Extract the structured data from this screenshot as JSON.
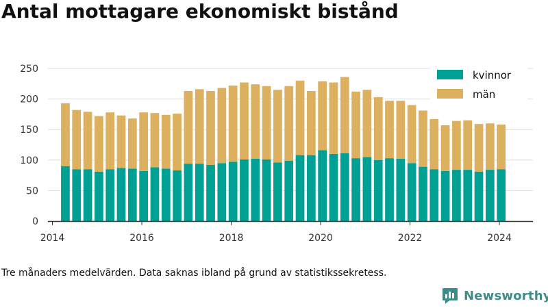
{
  "title": "Antal mottagare ekonomiskt bistånd",
  "note": "Tre månaders medelvärden. Data saknas ibland på grund av statistikssekretess.",
  "brand": {
    "name": "Newsworthy",
    "logo_icon": "newsworthy-logo-icon",
    "color": "#3c8c87"
  },
  "chart_data": {
    "type": "bar",
    "stacked": true,
    "title": "Antal mottagare ekonomiskt bistånd",
    "xlabel": "",
    "ylabel": "",
    "ylim": [
      0,
      250
    ],
    "xlim": [
      2013.9,
      2024.75
    ],
    "yticks": [
      0,
      50,
      100,
      150,
      200,
      250
    ],
    "xticks": [
      2014,
      2016,
      2018,
      2020,
      2022,
      2024
    ],
    "grid": "horizontal",
    "legend_position": "top-right",
    "x": [
      2014.29,
      2014.54,
      2014.79,
      2015.04,
      2015.29,
      2015.54,
      2015.79,
      2016.04,
      2016.29,
      2016.54,
      2016.79,
      2017.04,
      2017.29,
      2017.54,
      2017.79,
      2018.04,
      2018.29,
      2018.54,
      2018.79,
      2019.04,
      2019.29,
      2019.54,
      2019.79,
      2020.04,
      2020.29,
      2020.54,
      2020.79,
      2021.04,
      2021.29,
      2021.54,
      2021.79,
      2022.04,
      2022.29,
      2022.54,
      2022.79,
      2023.04,
      2023.29,
      2023.54,
      2023.79,
      2024.04
    ],
    "series": [
      {
        "name": "kvinnor",
        "color": "#00a095",
        "values": [
          90,
          85,
          85,
          81,
          85,
          87,
          86,
          82,
          88,
          86,
          83,
          94,
          94,
          92,
          95,
          97,
          101,
          102,
          101,
          96,
          99,
          108,
          108,
          116,
          110,
          111,
          103,
          105,
          100,
          103,
          102,
          95,
          89,
          85,
          82,
          84,
          84,
          81,
          84,
          85
        ]
      },
      {
        "name": "män",
        "color": "#dcb05e",
        "values": [
          103,
          97,
          94,
          91,
          93,
          86,
          82,
          96,
          89,
          88,
          93,
          119,
          122,
          121,
          123,
          125,
          126,
          122,
          120,
          119,
          122,
          122,
          105,
          113,
          117,
          125,
          109,
          110,
          103,
          94,
          95,
          95,
          92,
          82,
          75,
          80,
          81,
          78,
          76,
          73
        ]
      }
    ]
  }
}
